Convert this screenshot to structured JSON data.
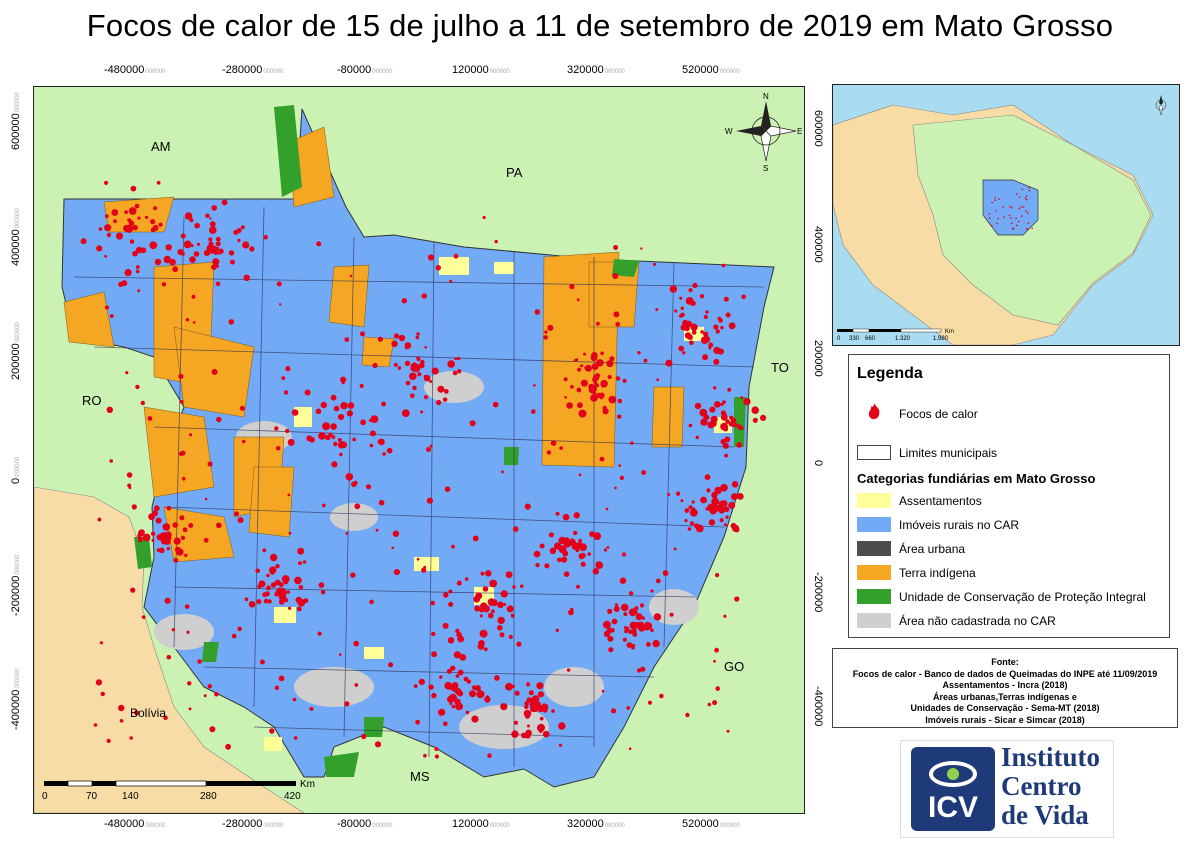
{
  "title": "Focos de calor de 15 de julho a 11 de setembro de 2019 em Mato Grosso",
  "x_ticks": [
    "-480000",
    "-280000",
    "-80000",
    "120000",
    "320000",
    "520000"
  ],
  "x_ticks_sub": "000000",
  "y_ticks": [
    "600000",
    "400000",
    "200000",
    "0",
    "-200000",
    "-400000"
  ],
  "y_ticks_sub": "000000",
  "neighbors": {
    "am": "AM",
    "pa": "PA",
    "ro": "RO",
    "to": "TO",
    "go": "GO",
    "ms": "MS",
    "bolivia": "Bolívia"
  },
  "compass": {
    "n": "N",
    "s": "S",
    "e": "E",
    "w": "W"
  },
  "scale": {
    "unit": "Km",
    "labels": [
      "0",
      "70",
      "140",
      "280",
      "420"
    ]
  },
  "inset_scale": {
    "unit": "Km",
    "labels": [
      "0",
      "330",
      "660",
      "1.320",
      "1.980"
    ]
  },
  "legend": {
    "title": "Legenda",
    "fire_label": "Focos de calor",
    "limits_label": "Limites municipais",
    "categories_title": "Categorias fundiárias em Mato Grosso",
    "categories": [
      {
        "label": "Assentamentos",
        "color": "#ffff99"
      },
      {
        "label": "Imóveis rurais no CAR",
        "color": "#73aaf5"
      },
      {
        "label": "Área urbana",
        "color": "#4d4d4d"
      },
      {
        "label": "Terra indígena",
        "color": "#f5a623"
      },
      {
        "label": "Unidade de Conservação de Proteção Integral",
        "color": "#33a02c"
      },
      {
        "label": "Área não cadastrada no CAR",
        "color": "#cfcfcf"
      }
    ],
    "fire_color": "#e3001b"
  },
  "source": {
    "heading": "Fonte:",
    "lines": [
      "Focos de calor - Banco de dados de Queimadas do INPE até 11/09/2019",
      "Assentamentos - Incra (2018)",
      "Áreas urbanas,Terras indígenas e",
      "Unidades de Conservação - Sema-MT (2018)",
      "Imóveis rurais - Sicar e Simcar (2018)"
    ]
  },
  "logo": {
    "abbr": "ICV",
    "name_lines": [
      "Instituto",
      "Centro",
      "de Vida"
    ]
  },
  "colors": {
    "neighbor_land": "#ccf2b3",
    "bolivia_land": "#f7dca5",
    "ocean": "#a9dcf0"
  }
}
